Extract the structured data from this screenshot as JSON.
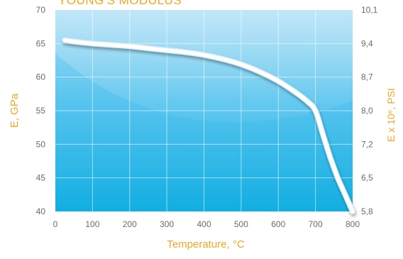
{
  "chart_data": {
    "type": "line",
    "title": "YOUNG'S MODULUS",
    "xlabel": "Temperature, °C",
    "ylabel": "E, GPa",
    "y2label": "E x 10⁶, PSI",
    "xlim": [
      0,
      800
    ],
    "ylim": [
      40,
      70
    ],
    "x_ticks": [
      "0",
      "100",
      "200",
      "300",
      "400",
      "500",
      "600",
      "700",
      "800"
    ],
    "y_ticks": [
      "40",
      "45",
      "50",
      "55",
      "60",
      "65",
      "70"
    ],
    "y2_ticks": [
      "5,8",
      "6,5",
      "7,2",
      "8,0",
      "8,7",
      "9,4",
      "10,1"
    ],
    "grid": true,
    "series": [
      {
        "x": [
          25,
          50,
          100,
          150,
          200,
          250,
          300,
          350,
          400,
          450,
          500,
          550,
          600,
          650,
          680,
          700,
          720,
          740,
          760,
          780,
          800
        ],
        "values": [
          65.5,
          65.3,
          65.0,
          64.8,
          64.6,
          64.3,
          64.0,
          63.7,
          63.3,
          62.7,
          61.9,
          60.8,
          59.4,
          57.6,
          56.3,
          55.0,
          51.5,
          48.0,
          45.0,
          42.5,
          40.0
        ]
      }
    ],
    "colors": {
      "label": "#f5a623",
      "tick": "#6b6b6b",
      "plot_top": "#9fd9f4",
      "plot_bottom": "#0fb0e3",
      "line": "#ffffff"
    }
  }
}
